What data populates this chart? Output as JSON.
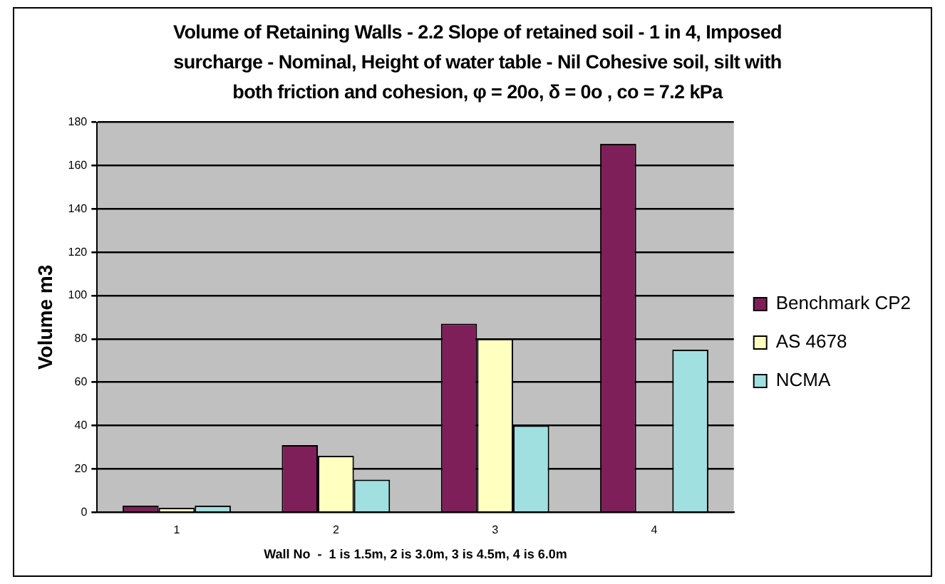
{
  "chart_data": {
    "type": "bar",
    "title": "Volume of  Retaining Walls - 2.2    Slope of retained soil - 1 in 4, Imposed surcharge - Nominal,  Height of  water table - Nil       Cohesive soil, silt with both friction and cohesion, φ = 20o, δ = 0o , co = 7.2 kPa",
    "xlabel": "Wall No  -  1 is 1.5m, 2 is 3.0m, 3 is 4.5m, 4 is 6.0m",
    "ylabel": "Volume m3",
    "categories": [
      "1",
      "2",
      "3",
      "4"
    ],
    "series": [
      {
        "name": "Benchmark CP2",
        "color": "#7f1f5a",
        "values": [
          3,
          31,
          87,
          170
        ]
      },
      {
        "name": "AS 4678",
        "color": "#ffffc0",
        "values": [
          2,
          26,
          80,
          null
        ]
      },
      {
        "name": "NCMA",
        "color": "#a0e0e0",
        "values": [
          3,
          15,
          40,
          75
        ]
      }
    ],
    "ylim": [
      0,
      180
    ],
    "yticks": [
      0,
      20,
      40,
      60,
      80,
      100,
      120,
      140,
      160,
      180
    ],
    "grid": "y",
    "legend": "right"
  }
}
